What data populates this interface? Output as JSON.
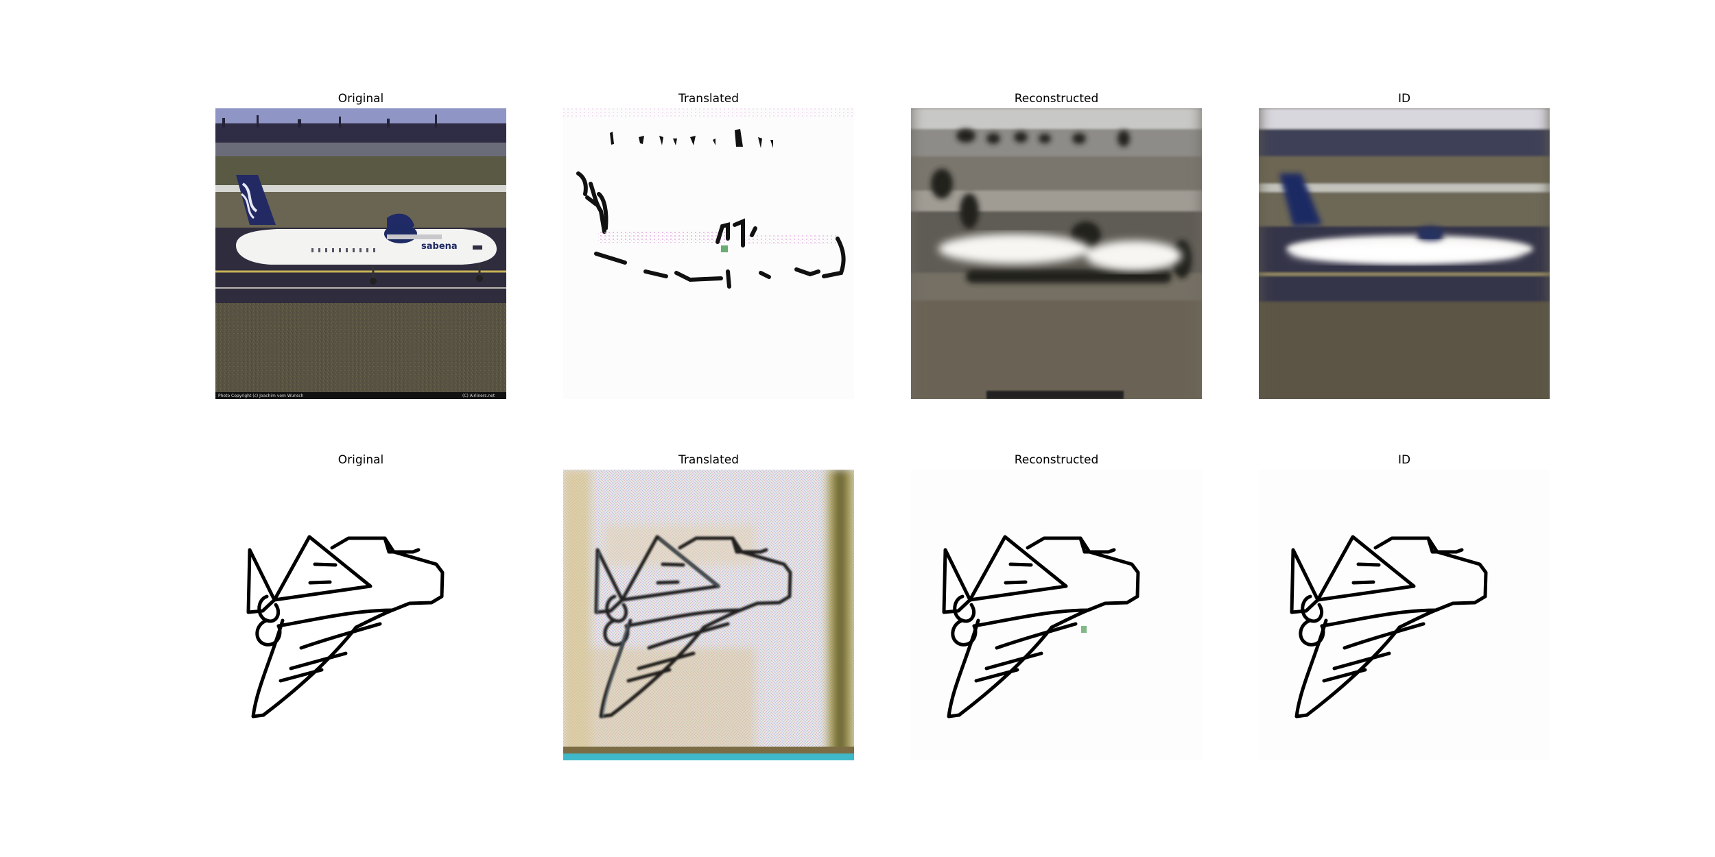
{
  "figure": {
    "rows": [
      {
        "panels": [
          {
            "title": "Original",
            "content": "photo-airplane-runway"
          },
          {
            "title": "Translated",
            "content": "sketch-like-airplane-from-photo"
          },
          {
            "title": "Reconstructed",
            "content": "blurry-airplane-photo"
          },
          {
            "title": "ID",
            "content": "blurry-airplane-photo-identity"
          }
        ],
        "watermark_left": "Photo Copyright (c) Joachim vom Wunsch",
        "watermark_right": "(C) Airliners.net"
      },
      {
        "panels": [
          {
            "title": "Original",
            "content": "airplane-line-sketch"
          },
          {
            "title": "Translated",
            "content": "noisy-photo-like-airplane-from-sketch"
          },
          {
            "title": "Reconstructed",
            "content": "airplane-line-sketch-reconstructed"
          },
          {
            "title": "ID",
            "content": "airplane-line-sketch-identity"
          }
        ]
      }
    ]
  }
}
